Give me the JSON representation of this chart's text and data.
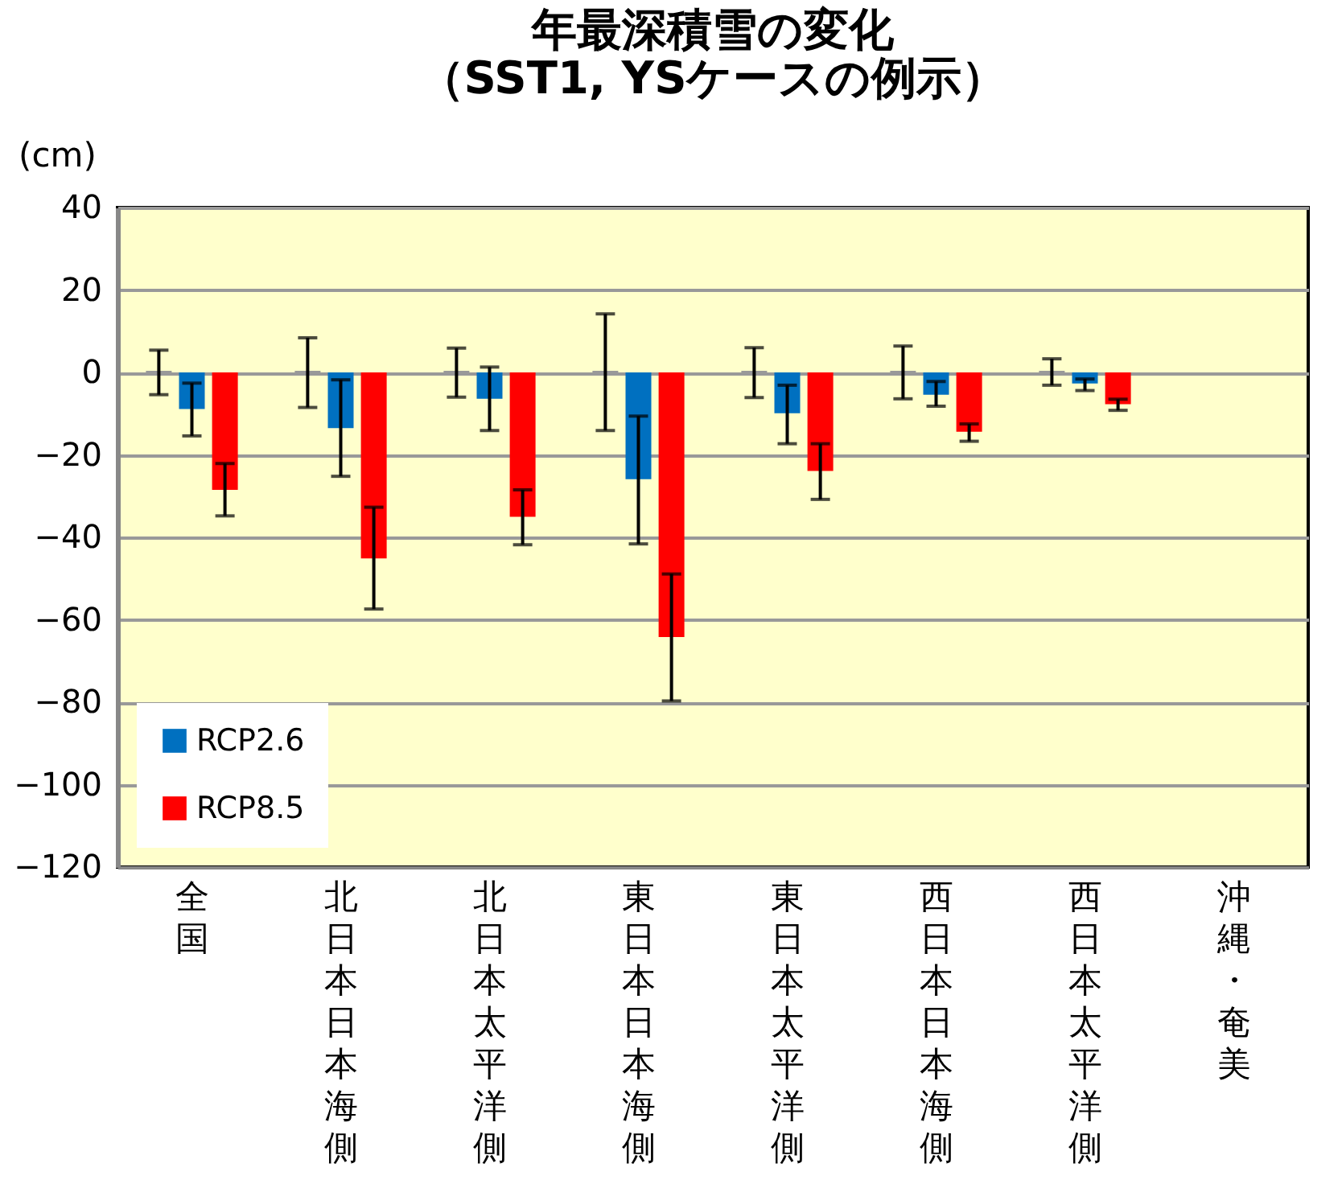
{
  "chart_data": {
    "type": "bar",
    "title": [
      "年最深積雪の変化",
      "（SST1, YSケースの例示）"
    ],
    "ylabel": "(cm)",
    "categories": [
      "全国",
      "北日本日本海側",
      "北日本太平洋側",
      "東日本日本海側",
      "東日本太平洋側",
      "西日本日本海側",
      "西日本太平洋側",
      "沖縄・奄美"
    ],
    "series": [
      {
        "color": "#999999",
        "values": [
          0,
          0,
          0,
          0,
          0,
          0,
          0,
          null
        ],
        "errors": [
          [
            -5.4,
            5.4
          ],
          [
            -8.5,
            8.4
          ],
          [
            -6,
            5.9
          ],
          [
            -14.1,
            14.2
          ],
          [
            -6.1,
            6
          ],
          [
            -6.4,
            6.4
          ],
          [
            -3.1,
            3.3
          ],
          null
        ]
      },
      {
        "name": "RCP2.6",
        "color": "#0070c0",
        "values": [
          -8.9,
          -13.5,
          -6.4,
          -25.9,
          -9.9,
          -5.4,
          -2.7,
          null
        ],
        "errors": [
          [
            -15.4,
            -2.6
          ],
          [
            -25.2,
            -1.8
          ],
          [
            -14.1,
            1.3
          ],
          [
            -41.6,
            -10.6
          ],
          [
            -17.3,
            -3.1
          ],
          [
            -8.2,
            -2.2
          ],
          [
            -4.4,
            -1.6
          ],
          null
        ]
      },
      {
        "name": "RCP8.5",
        "color": "#ff0000",
        "values": [
          -28.5,
          -45.1,
          -35,
          -64.2,
          -23.9,
          -14.4,
          -7.7,
          null
        ],
        "errors": [
          [
            -34.8,
            -22.1
          ],
          [
            -57.4,
            -32.7
          ],
          [
            -41.8,
            -28.5
          ],
          [
            -79.7,
            -48.9
          ],
          [
            -30.8,
            -17.3
          ],
          [
            -16.7,
            -12.5
          ],
          [
            -9.2,
            -6.5
          ],
          null
        ]
      }
    ],
    "ylim": [
      -120,
      40
    ],
    "yticks": [
      -120,
      -100,
      -80,
      -60,
      -40,
      -20,
      0,
      20,
      40
    ],
    "grid": "y",
    "legend": "bottom left"
  }
}
